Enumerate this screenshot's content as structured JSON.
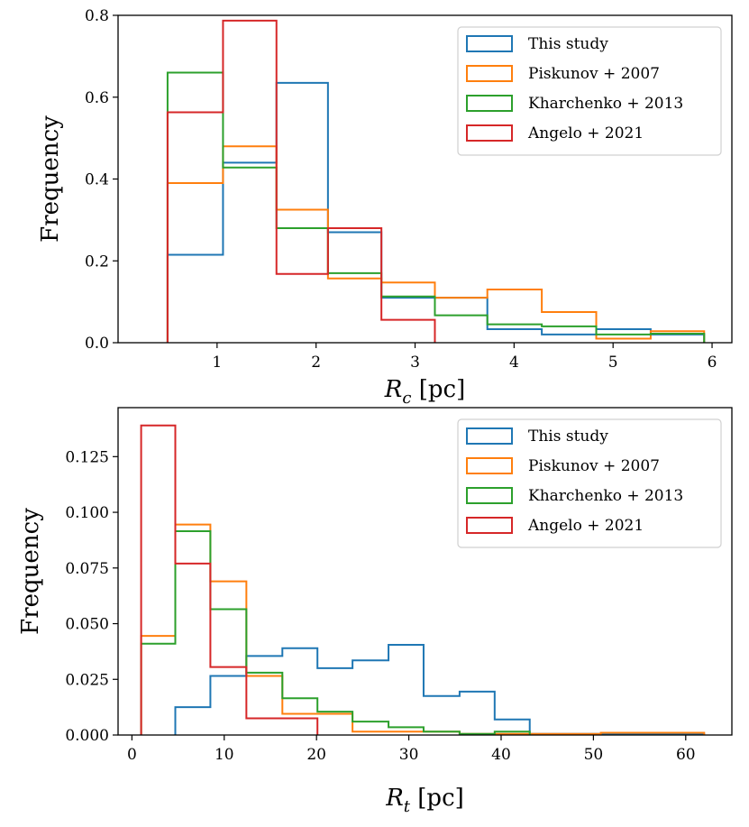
{
  "chart_data": [
    {
      "type": "histogram-step",
      "xlabel": "R_c [pc]",
      "ylabel": "Frequency",
      "xlim": [
        0.0,
        6.2
      ],
      "ylim": [
        0.0,
        0.8
      ],
      "xticks": [
        "1",
        "2",
        "3",
        "4",
        "5",
        "6"
      ],
      "yticks": [
        "0.0",
        "0.2",
        "0.4",
        "0.6",
        "0.8"
      ],
      "legend_position": "top-right",
      "series": [
        {
          "name": "This study",
          "color": "#1f77b4",
          "edges": [
            0.5,
            1.06,
            1.6,
            2.12,
            2.66,
            3.2,
            3.73,
            4.28,
            4.83,
            5.38,
            5.92
          ],
          "values": [
            0.215,
            0.44,
            0.635,
            0.27,
            0.11,
            0.11,
            0.033,
            0.02,
            0.033,
            0.02
          ]
        },
        {
          "name": "Piskunov + 2007",
          "color": "#ff7f0e",
          "edges": [
            0.5,
            1.06,
            1.6,
            2.12,
            2.66,
            3.2,
            3.73,
            4.28,
            4.83,
            5.38,
            5.92
          ],
          "values": [
            0.39,
            0.48,
            0.325,
            0.157,
            0.147,
            0.11,
            0.13,
            0.075,
            0.01,
            0.028
          ]
        },
        {
          "name": "Kharchenko + 2013",
          "color": "#2ca02c",
          "edges": [
            0.5,
            1.06,
            1.6,
            2.12,
            2.66,
            3.2,
            3.73,
            4.28,
            4.83,
            5.38,
            5.92
          ],
          "values": [
            0.66,
            0.428,
            0.28,
            0.17,
            0.113,
            0.067,
            0.045,
            0.04,
            0.02,
            0.022
          ]
        },
        {
          "name": "Angelo + 2021",
          "color": "#d62728",
          "edges": [
            0.5,
            1.06,
            1.6,
            2.12,
            2.66,
            3.2
          ],
          "values": [
            0.563,
            0.787,
            0.168,
            0.28,
            0.056
          ]
        }
      ]
    },
    {
      "type": "histogram-step",
      "xlabel": "R_t [pc]",
      "ylabel": "Frequency",
      "xlim": [
        -1.5,
        65.0
      ],
      "ylim": [
        0.0,
        0.147
      ],
      "xticks": [
        "0",
        "10",
        "20",
        "30",
        "40",
        "50",
        "60"
      ],
      "yticks": [
        "0.000",
        "0.025",
        "0.050",
        "0.075",
        "0.100",
        "0.125"
      ],
      "legend_position": "top-right",
      "series": [
        {
          "name": "This study",
          "color": "#1f77b4",
          "edges": [
            4.7,
            8.5,
            12.4,
            16.3,
            20.1,
            23.9,
            27.8,
            31.6,
            35.5,
            39.3,
            43.1,
            47.0,
            50.8,
            54.6,
            58.5,
            62.0
          ],
          "values": [
            0.0125,
            0.0265,
            0.0355,
            0.039,
            0.03,
            0.0335,
            0.0405,
            0.0175,
            0.0195,
            0.007,
            0.0005,
            0.0005,
            0.0005,
            0.0005,
            0.0005
          ]
        },
        {
          "name": "Piskunov + 2007",
          "color": "#ff7f0e",
          "edges": [
            1.0,
            4.7,
            8.5,
            12.4,
            16.3,
            20.1,
            23.9,
            27.8,
            31.6,
            35.5,
            39.3,
            43.1,
            47.0,
            50.8,
            54.6,
            58.5,
            62.0
          ],
          "values": [
            0.0445,
            0.0945,
            0.069,
            0.0265,
            0.0095,
            0.0095,
            0.0015,
            0.0015,
            0.0015,
            0.0005,
            0.0005,
            0.0005,
            0.0005,
            0.001,
            0.001,
            0.001
          ]
        },
        {
          "name": "Kharchenko + 2013",
          "color": "#2ca02c",
          "edges": [
            1.0,
            4.7,
            8.5,
            12.4,
            16.3,
            20.1,
            23.9,
            27.8,
            31.6,
            35.5,
            39.3,
            43.1
          ],
          "values": [
            0.041,
            0.0915,
            0.0565,
            0.028,
            0.0165,
            0.0105,
            0.006,
            0.0035,
            0.0015,
            0.0005,
            0.0015
          ]
        },
        {
          "name": "Angelo + 2021",
          "color": "#d62728",
          "edges": [
            1.0,
            4.7,
            8.5,
            12.4,
            16.3,
            20.1
          ],
          "values": [
            0.139,
            0.077,
            0.0305,
            0.0075,
            0.0075
          ]
        }
      ]
    }
  ]
}
